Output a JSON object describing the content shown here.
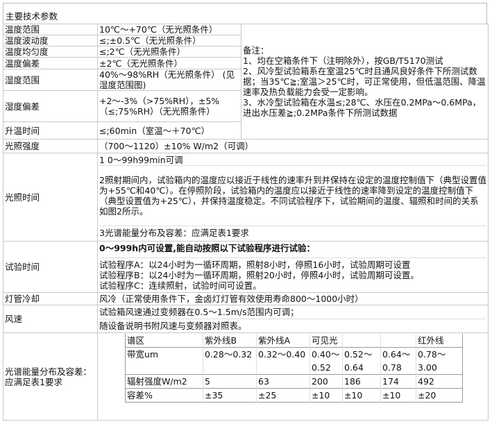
{
  "title": "主要技术参数",
  "rows": {
    "temp_range": {
      "label": "温度范围",
      "value": "10℃～+70℃（无光照条件）"
    },
    "temp_fluct": {
      "label": "温度波动度",
      "value": "≤;±0.5℃（无光照条件）"
    },
    "temp_uniform": {
      "label": "温度均匀度",
      "value": "≤;2℃（无光照条件）"
    },
    "temp_dev": {
      "label": "温度偏差",
      "value": "±2℃（无光照条件）"
    },
    "hum_range": {
      "label": "湿度范围",
      "value": "40%～98%RH（无光照条件） (见湿度范围图)"
    },
    "hum_dev": {
      "label": "湿度偏差",
      "value": "+2～-3%（>75%RH），±5%（≤;75%RH）（无光照条件）"
    },
    "heat_time": {
      "label": "升温时间",
      "value": "≤;60min（室温～＋70℃）"
    },
    "light_intensity": {
      "label": "光照强度",
      "value": "（700～1120）±10% W/m2（可调）"
    },
    "light_time": {
      "label": "光照时间",
      "items": [
        "1  0～99h99min可调",
        "2照射期间内，试验箱内的温度应以接近于线性的速率升到并保持在设定的温度控制值下（典型设置值为+55℃和40℃）。在停照阶段，试验箱内的温度应以接近于线性的速率降到设定的温度控制值下（典型设置值为+25℃），并保持温度稳定。不同试验程序下，试验期间的温度、辐照和时间的关系如图2所示。",
        "3光谱能量分布及容差：应满足表1要求"
      ]
    },
    "test_time": {
      "label": "试验时间",
      "header": "0～999h内可设置,能自动按照以下试验程序进行试验：",
      "items": [
        "试验程序A：以24小时为一循环周期，照射8小时，停照16小时，试验周期可设置",
        "试验程序B：以24小时为一循环周期，照射20小时，停照4小时，试验周期可设置。",
        "试验程序C：连续照射，试验时间可设置。"
      ]
    },
    "lamp_cooling": {
      "label": "灯管冷却",
      "value": "风冷（正常使用条件下，金卤灯灯管有效使用寿命800～1000小时）"
    },
    "wind": {
      "label": "风速",
      "items": [
        "试验箱风速通过变频器在0.5～1.5m/s范围内可调；",
        "随设备说明书附风速与变频器对照表。"
      ]
    },
    "spectrum": {
      "label": "光谱能量分布及容差：应满足表1要求",
      "table": [
        [
          "谱区",
          "紫外线B",
          "紫外线A",
          "可见光",
          "",
          "",
          "红外线"
        ],
        [
          "带宽um",
          "0.28～0.32",
          "0.32～0.40",
          "0.40～0.52",
          "0.52～0.64",
          "0.64～0.78",
          "0.78～3.00"
        ],
        [
          "辐射强度W/m2",
          "5",
          "63",
          "200",
          "186",
          "174",
          "492"
        ],
        [
          "容差%",
          "±35",
          "±25",
          "±10",
          "±10",
          "±10",
          "±20"
        ]
      ]
    }
  },
  "notes": {
    "heading": "备注：",
    "items": [
      "1、均在空箱条件下（注明除外），按GB/T5170测试",
      "2、风冷型试验箱系在室温25℃时且通风良好条件下所测试数据；当35℃≧;室温＞25℃时，可正常使用，但低温范围、降温速率及热负载能力会受一定影响。",
      "3、水冷型试验箱在水温≤;28℃、水压在0.2MPa～0.6MPa，进出水压差≧;0.2MPa条件下所测试数据"
    ]
  }
}
